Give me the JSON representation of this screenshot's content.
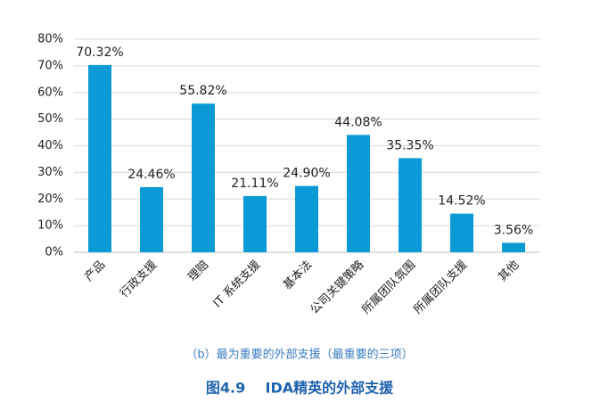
{
  "chart_data": {
    "type": "bar",
    "categories": [
      "产品",
      "行政支援",
      "理赔",
      "IT 系统支援",
      "基本法",
      "公司关键策略",
      "所属团队氛围",
      "所属团队支援",
      "其他"
    ],
    "values": [
      70.32,
      24.46,
      55.82,
      21.11,
      24.9,
      44.08,
      35.35,
      14.52,
      3.56
    ],
    "value_labels": [
      "70.32%",
      "24.46%",
      "55.82%",
      "21.11%",
      "24.90%",
      "44.08%",
      "35.35%",
      "14.52%",
      "3.56%"
    ],
    "color": "#0a9ad6",
    "ylim": [
      0,
      80
    ],
    "yticks": [
      {
        "value": 0,
        "label": "0%"
      },
      {
        "value": 10,
        "label": "10%"
      },
      {
        "value": 20,
        "label": "20%"
      },
      {
        "value": 30,
        "label": "30%"
      },
      {
        "value": 40,
        "label": "40%"
      },
      {
        "value": 50,
        "label": "50%"
      },
      {
        "value": 60,
        "label": "60%"
      },
      {
        "value": 70,
        "label": "70%"
      },
      {
        "value": 80,
        "label": "80%"
      }
    ],
    "grid": true,
    "subtitle": "（b）最为重要的外部支援（最重要的三项）",
    "caption": "图4.9    IDA精英的外部支援"
  }
}
